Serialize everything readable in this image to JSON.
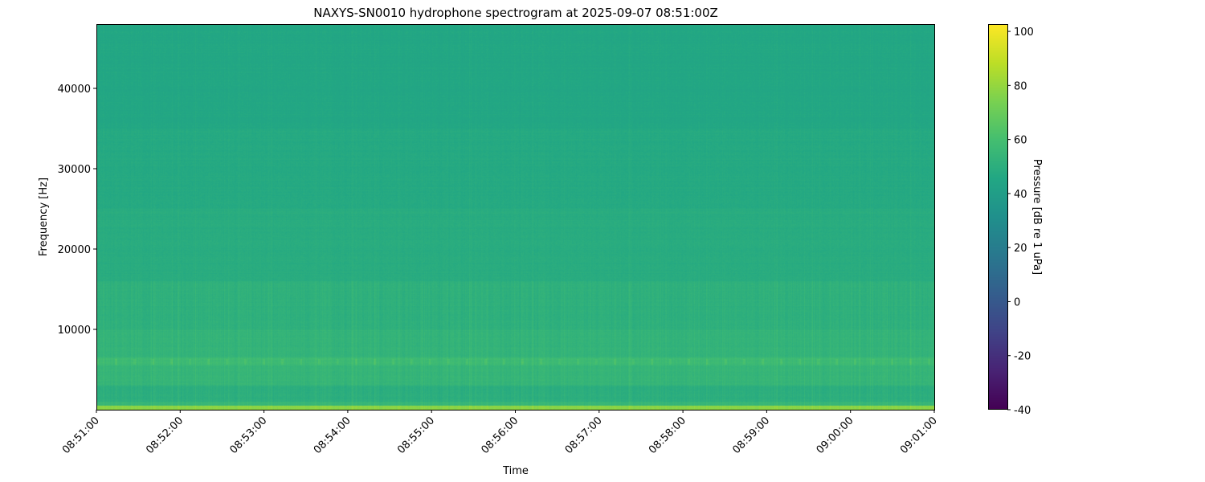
{
  "chart_data": {
    "type": "heatmap",
    "title": "NAXYS-SN0010 hydrophone spectrogram at 2025-09-07 08:51:00Z",
    "xlabel": "Time",
    "ylabel": "Frequency [Hz]",
    "colorbar_label": "Pressure [dB re 1 uPa]",
    "colormap": "viridis",
    "x_ticks": [
      "08:51:00",
      "08:52:00",
      "08:53:00",
      "08:54:00",
      "08:55:00",
      "08:56:00",
      "08:57:00",
      "08:58:00",
      "08:59:00",
      "09:00:00",
      "09:01:00"
    ],
    "xlim": [
      "08:51:00",
      "09:01:00"
    ],
    "y_ticks": [
      10000,
      20000,
      30000,
      40000
    ],
    "ylim": [
      0,
      48000
    ],
    "colorbar_ticks": [
      -40,
      -20,
      0,
      20,
      40,
      60,
      80,
      100
    ],
    "clim": [
      -40,
      102.7
    ],
    "approx_band_levels_db": [
      {
        "f_low": 0,
        "f_high": 500,
        "level": 78
      },
      {
        "f_low": 500,
        "f_high": 1000,
        "level": 55
      },
      {
        "f_low": 1000,
        "f_high": 3000,
        "level": 50
      },
      {
        "f_low": 3000,
        "f_high": 5500,
        "level": 54
      },
      {
        "f_low": 5500,
        "f_high": 6500,
        "level": 57
      },
      {
        "f_low": 6500,
        "f_high": 10000,
        "level": 53
      },
      {
        "f_low": 10000,
        "f_high": 16000,
        "level": 51
      },
      {
        "f_low": 16000,
        "f_high": 25000,
        "level": 48.5
      },
      {
        "f_low": 25000,
        "f_high": 35000,
        "level": 47
      },
      {
        "f_low": 35000,
        "f_high": 48000,
        "level": 45.5
      }
    ],
    "grid": false
  }
}
